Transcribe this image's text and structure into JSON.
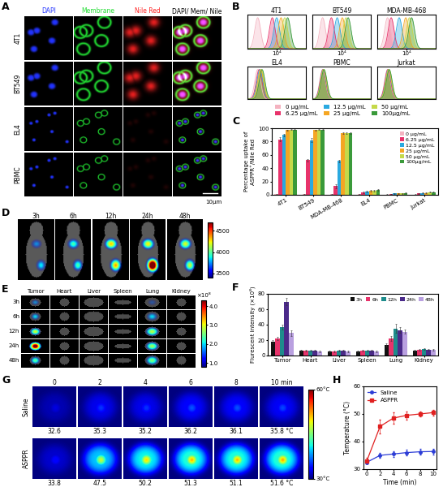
{
  "panel_labels": [
    "A",
    "B",
    "C",
    "D",
    "E",
    "F",
    "G",
    "H"
  ],
  "A": {
    "columns": [
      {
        "label": "DAPI",
        "color": "#2233ff"
      },
      {
        "label": "Membrane",
        "color": "#22dd33"
      },
      {
        "label": "Nile Red",
        "color": "#ff2222"
      },
      {
        "label": "DAPI/ Mem/ Nile",
        "color": "#000000"
      }
    ],
    "rows": [
      "4T1",
      "BT549",
      "EL4",
      "PBMC"
    ],
    "scale_bar": "10μm"
  },
  "D": {
    "times": [
      "3h",
      "6h",
      "12h",
      "24h",
      "48h"
    ],
    "colorbar": {
      "range": [
        3400,
        4700
      ],
      "ticks": [
        3500,
        4000,
        4500
      ]
    }
  },
  "E": {
    "columns": [
      "Tumor",
      "Heart",
      "Liver",
      "Spleen",
      "Lung",
      "Kidney"
    ],
    "rows": [
      "3h",
      "6h",
      "12h",
      "24h",
      "48h"
    ],
    "colorbar": {
      "label": "×10⁸",
      "range": [
        0.8,
        4.3
      ],
      "ticks": [
        {
          "value": 1.0,
          "label": "1.0"
        },
        {
          "value": 2.0,
          "label": "2.0"
        },
        {
          "value": 3.0,
          "label": "3.0"
        },
        {
          "value": 4.0,
          "label": "4.0"
        }
      ]
    }
  },
  "G": {
    "times": [
      "0",
      "2",
      "4",
      "6",
      "8",
      "10 min"
    ],
    "rows": [
      {
        "name": "Saline",
        "values": [
          32.6,
          35.3,
          35.2,
          36.2,
          36.1,
          35.8
        ],
        "value_labels": [
          "32.6",
          "35.3",
          "35.2",
          "36.2",
          "36.1",
          "35.8 °C"
        ]
      },
      {
        "name": "ASPPR",
        "values": [
          33.8,
          47.5,
          50.2,
          51.3,
          51.1,
          51.6
        ],
        "value_labels": [
          "33.8",
          "47.5",
          "50.2",
          "51.3",
          "51.1",
          "51.6 °C"
        ]
      }
    ],
    "colorbar": {
      "range": [
        30,
        60
      ],
      "ticks": [
        {
          "value": 30,
          "label": "30°C"
        },
        {
          "value": 60,
          "label": "60°C"
        }
      ]
    }
  },
  "chart_data": [
    {
      "type": "density",
      "xlim": [
        2,
        6
      ],
      "ylim": [
        0,
        1.1
      ],
      "legend": "center",
      "series": [
        {
          "name": "0 μg/mL",
          "color": "#f4b3c0"
        },
        {
          "name": "6.25 μg/mL",
          "color": "#e8336b"
        },
        {
          "name": "12.5 μg/mL",
          "color": "#2aa9e0"
        },
        {
          "name": "25 μg/mL",
          "color": "#f5a623"
        },
        {
          "name": "50 μg/mL",
          "color": "#c5d94a"
        },
        {
          "name": "100μg/mL",
          "color": "#3a9a3a"
        }
      ],
      "panels": [
        {
          "title": "4T1",
          "peaks": [
            2.7,
            3.7,
            4.0,
            4.3,
            4.55,
            4.75
          ],
          "tick_labels": "x",
          "xticks": [
            {
              "value": 4,
              "label": "10⁴"
            }
          ]
        },
        {
          "title": "BT549",
          "peaks": [
            2.7,
            3.3,
            3.7,
            4.05,
            4.3,
            4.45
          ],
          "tick_labels": "x",
          "xticks": [
            {
              "value": 4,
              "label": "10⁴"
            }
          ]
        },
        {
          "title": "MDA-MB-468",
          "peaks": [
            2.7,
            2.95,
            3.5,
            3.95,
            4.2,
            4.35
          ],
          "tick_labels": "x",
          "xticks": [
            {
              "value": 4,
              "label": "10⁴"
            }
          ]
        },
        {
          "title": "EL4",
          "peaks": [
            2.7,
            2.8,
            2.85,
            2.9,
            2.95,
            3.0
          ],
          "tick_labels": false
        },
        {
          "title": "PBMC",
          "peaks": [
            2.7,
            2.72,
            2.74,
            2.76,
            2.78,
            2.8
          ],
          "tick_labels": false
        },
        {
          "title": "Jurkat",
          "peaks": [
            2.7,
            2.72,
            2.75,
            2.77,
            2.79,
            2.82
          ],
          "tick_labels": false
        }
      ]
    },
    {
      "type": "bar",
      "categories": [
        "4T1",
        "BT549",
        "MDA-MB-468",
        "EL4",
        "PBMC",
        "Jurkat"
      ],
      "ylabel": "Percentage uptake of\nASPPR⁺/Nile Red",
      "ylim": [
        0,
        100
      ],
      "yticks": [
        0,
        20,
        40,
        60,
        80,
        100
      ],
      "legend": "upper right",
      "series": [
        {
          "name": "0 μg/mL",
          "color": "#f4b3c0",
          "values": [
            1,
            1,
            1,
            1,
            0.5,
            0.5
          ],
          "errors": [
            0.5,
            0.5,
            0.5,
            0.5,
            0.3,
            0.3
          ]
        },
        {
          "name": "6.25 μg/mL",
          "color": "#e8336b",
          "values": [
            83,
            52,
            13,
            4,
            1,
            2
          ],
          "errors": [
            3,
            2,
            3,
            1,
            0.5,
            0.5
          ]
        },
        {
          "name": "12.5 μg/mL",
          "color": "#2aa9e0",
          "values": [
            90,
            82,
            51,
            5,
            2,
            3
          ],
          "errors": [
            2,
            3,
            2,
            1,
            0.5,
            0.5
          ]
        },
        {
          "name": "25 μg/mL",
          "color": "#f5a623",
          "values": [
            97,
            97,
            93,
            6,
            2,
            3
          ],
          "errors": [
            1,
            1,
            1,
            1,
            0.5,
            0.5
          ]
        },
        {
          "name": "50 μg/mL",
          "color": "#c5d94a",
          "values": [
            98,
            98,
            93,
            6,
            2,
            4
          ],
          "errors": [
            1,
            1,
            1,
            1,
            0.5,
            0.5
          ]
        },
        {
          "name": "100μg/mL",
          "color": "#3a9a3a",
          "values": [
            98,
            98,
            93,
            7,
            3,
            4
          ],
          "errors": [
            1,
            1,
            1,
            1,
            0.5,
            0.5
          ]
        }
      ]
    },
    {
      "type": "bar",
      "categories": [
        "Tumor",
        "Heart",
        "Liver",
        "Spleen",
        "Lung",
        "Kidney"
      ],
      "ylabel": "Flurescent intensity (×10⁸)",
      "ylim": [
        0,
        80
      ],
      "yticks": [
        0,
        20,
        40,
        60,
        80
      ],
      "legend": "upper right",
      "series": [
        {
          "name": "3h",
          "color": "#111111",
          "values": [
            18,
            6,
            5,
            5,
            14,
            6
          ],
          "errors": [
            2,
            1,
            1,
            1,
            2,
            1
          ]
        },
        {
          "name": "6h",
          "color": "#e8336b",
          "values": [
            22,
            6,
            5,
            6,
            22,
            7
          ],
          "errors": [
            2,
            1,
            1,
            1,
            3,
            1
          ]
        },
        {
          "name": "12h",
          "color": "#1e8c8c",
          "values": [
            37,
            6,
            6,
            6,
            35,
            8
          ],
          "errors": [
            3,
            1,
            1,
            1,
            6,
            1
          ]
        },
        {
          "name": "24h",
          "color": "#4b2a8a",
          "values": [
            70,
            6,
            6,
            6,
            33,
            7
          ],
          "errors": [
            5,
            1,
            1,
            1,
            4,
            1
          ]
        },
        {
          "name": "48h",
          "color": "#b9a0e0",
          "values": [
            29,
            5,
            5,
            5,
            31,
            7
          ],
          "errors": [
            4,
            1,
            1,
            1,
            3,
            1
          ]
        }
      ]
    },
    {
      "type": "line",
      "x": [
        0,
        2,
        4,
        6,
        8,
        10
      ],
      "xlim": [
        -0.5,
        10.5
      ],
      "xticks": [
        0,
        2,
        4,
        6,
        8,
        10
      ],
      "ylim": [
        30,
        60
      ],
      "yticks": [
        30,
        40,
        50,
        60
      ],
      "xlabel": "Time (min)",
      "ylabel": "Temperature (°C)",
      "legend": "upper left",
      "series": [
        {
          "name": "Saline",
          "color": "#2b3cd6",
          "marker": "circle",
          "values": [
            32.5,
            35.0,
            35.5,
            36.0,
            36.3,
            36.4
          ],
          "errors": [
            0.5,
            1,
            1,
            1,
            1,
            1
          ]
        },
        {
          "name": "ASPPR",
          "color": "#e02020",
          "marker": "square",
          "values": [
            33.0,
            45.5,
            48.5,
            49.5,
            50.0,
            50.5
          ],
          "errors": [
            1,
            2.5,
            2,
            1.5,
            1,
            1
          ]
        }
      ]
    }
  ]
}
